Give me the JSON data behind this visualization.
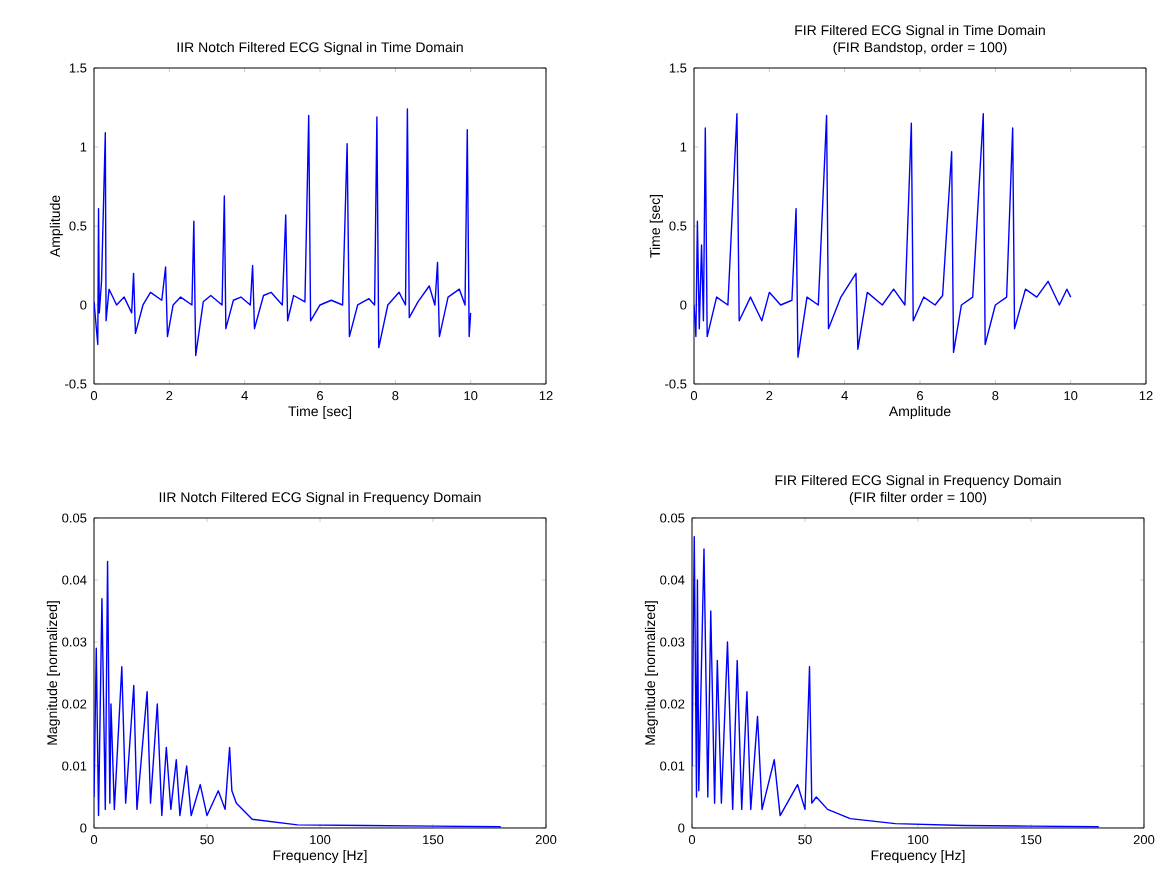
{
  "chart_data": [
    {
      "type": "line",
      "title": "IIR Notch Filtered ECG Signal in Time Domain",
      "xlabel": "Time [sec]",
      "ylabel": "Amplitude",
      "xlim": [
        0,
        12
      ],
      "ylim": [
        -0.5,
        1.5
      ],
      "xticks": [
        0,
        2,
        4,
        6,
        8,
        10,
        12
      ],
      "yticks": [
        -0.5,
        0,
        0.5,
        1,
        1.5
      ],
      "series": [
        {
          "color": "#0000ff",
          "x": [
            0,
            0.1,
            0.12,
            0.14,
            0.2,
            0.3,
            0.32,
            0.4,
            0.6,
            0.8,
            1.0,
            1.05,
            1.1,
            1.3,
            1.5,
            1.8,
            1.9,
            1.95,
            2.1,
            2.3,
            2.6,
            2.65,
            2.7,
            2.9,
            3.1,
            3.4,
            3.46,
            3.5,
            3.7,
            3.9,
            4.15,
            4.21,
            4.26,
            4.5,
            4.7,
            5.0,
            5.09,
            5.14,
            5.3,
            5.6,
            5.7,
            5.75,
            6.0,
            6.3,
            6.6,
            6.72,
            6.78,
            7.0,
            7.3,
            7.45,
            7.51,
            7.56,
            7.8,
            8.1,
            8.27,
            8.32,
            8.37,
            8.6,
            8.9,
            9.05,
            9.12,
            9.17,
            9.4,
            9.7,
            9.85,
            9.91,
            9.96,
            10.0
          ],
          "values": [
            0.02,
            -0.25,
            0.61,
            -0.05,
            0.15,
            1.09,
            -0.1,
            0.1,
            0.0,
            0.05,
            -0.05,
            0.2,
            -0.18,
            0.0,
            0.08,
            0.03,
            0.24,
            -0.2,
            0.0,
            0.05,
            0.0,
            0.53,
            -0.32,
            0.02,
            0.06,
            0.0,
            0.69,
            -0.15,
            0.03,
            0.05,
            0.0,
            0.25,
            -0.15,
            0.06,
            0.08,
            0.0,
            0.57,
            -0.1,
            0.06,
            0.02,
            1.2,
            -0.1,
            0.0,
            0.03,
            0.0,
            1.02,
            -0.2,
            0.0,
            0.04,
            0.0,
            1.19,
            -0.27,
            0.0,
            0.08,
            0.0,
            1.24,
            -0.08,
            0.02,
            0.12,
            0.0,
            0.27,
            -0.2,
            0.05,
            0.1,
            0.0,
            1.11,
            -0.2,
            -0.05
          ]
        }
      ]
    },
    {
      "type": "line",
      "title": "FIR Filtered ECG Signal in Time Domain",
      "subtitle": "(FIR Bandstop, order = 100)",
      "xlabel": "Amplitude",
      "ylabel": "Time [sec]",
      "xlim": [
        0,
        12
      ],
      "ylim": [
        -0.5,
        1.5
      ],
      "xticks": [
        0,
        2,
        4,
        6,
        8,
        10,
        12
      ],
      "yticks": [
        -0.5,
        0,
        0.5,
        1,
        1.5
      ],
      "series": [
        {
          "color": "#0000ff",
          "x": [
            0,
            0.05,
            0.09,
            0.14,
            0.2,
            0.25,
            0.3,
            0.35,
            0.6,
            0.9,
            1.14,
            1.2,
            1.5,
            1.8,
            2.0,
            2.3,
            2.6,
            2.71,
            2.76,
            3.0,
            3.3,
            3.52,
            3.57,
            3.9,
            4.3,
            4.35,
            4.6,
            5.0,
            5.3,
            5.6,
            5.77,
            5.82,
            6.1,
            6.4,
            6.6,
            6.84,
            6.89,
            7.1,
            7.4,
            7.68,
            7.73,
            8.0,
            8.3,
            8.46,
            8.51,
            8.8,
            9.1,
            9.4,
            9.7,
            9.9,
            10.0
          ],
          "values": [
            0.0,
            -0.2,
            0.53,
            -0.15,
            0.38,
            -0.1,
            1.12,
            -0.2,
            0.05,
            0.0,
            1.21,
            -0.1,
            0.05,
            -0.1,
            0.08,
            0.0,
            0.03,
            0.61,
            -0.33,
            0.05,
            0.0,
            1.2,
            -0.15,
            0.05,
            0.2,
            -0.28,
            0.08,
            0.0,
            0.1,
            0.0,
            1.15,
            -0.1,
            0.05,
            0.0,
            0.06,
            0.97,
            -0.3,
            0.0,
            0.05,
            1.21,
            -0.25,
            0.0,
            0.05,
            1.12,
            -0.15,
            0.1,
            0.05,
            0.15,
            0.0,
            0.1,
            0.05
          ]
        }
      ]
    },
    {
      "type": "line",
      "title": "IIR Notch Filtered ECG Signal in Frequency Domain",
      "xlabel": "Frequency [Hz]",
      "ylabel": "Magnitude [normalized]",
      "xlim": [
        0,
        200
      ],
      "ylim": [
        0,
        0.05
      ],
      "xticks": [
        0,
        50,
        100,
        150,
        200
      ],
      "yticks": [
        0,
        0.01,
        0.02,
        0.03,
        0.04,
        0.05
      ],
      "series": [
        {
          "color": "#0000ff",
          "x": [
            0,
            1,
            2,
            3.5,
            5,
            6,
            7,
            7.5,
            9,
            12.3,
            14,
            17.6,
            19,
            23.5,
            25,
            28,
            30,
            32,
            34,
            36.4,
            38,
            41,
            43,
            47,
            50,
            55,
            58,
            60,
            61,
            63,
            70,
            90,
            120,
            150,
            180
          ],
          "values": [
            0.005,
            0.029,
            0.002,
            0.037,
            0.003,
            0.043,
            0.004,
            0.02,
            0.003,
            0.026,
            0.004,
            0.023,
            0.003,
            0.022,
            0.004,
            0.02,
            0.002,
            0.013,
            0.003,
            0.011,
            0.002,
            0.01,
            0.002,
            0.007,
            0.002,
            0.006,
            0.003,
            0.013,
            0.006,
            0.004,
            0.0014,
            0.0005,
            0.0004,
            0.0003,
            0.0002
          ]
        }
      ]
    },
    {
      "type": "line",
      "title": "FIR Filtered ECG Signal in Frequency Domain",
      "subtitle": "(FIR filter order = 100)",
      "xlabel": "Frequency [Hz]",
      "ylabel": "Magnitude [normalized]",
      "xlim": [
        0,
        200
      ],
      "ylim": [
        0,
        0.05
      ],
      "xticks": [
        0,
        50,
        100,
        150,
        200
      ],
      "yticks": [
        0,
        0.01,
        0.02,
        0.03,
        0.04,
        0.05
      ],
      "series": [
        {
          "color": "#0000ff",
          "x": [
            0,
            1,
            2,
            2.4,
            3,
            5.3,
            7,
            8.3,
            10,
            11.2,
            13,
            15.7,
            18,
            20,
            22,
            24.3,
            26,
            29,
            31,
            36.4,
            39,
            46.7,
            50,
            52,
            53,
            55,
            60,
            70,
            90,
            120,
            150,
            180
          ],
          "values": [
            0.01,
            0.047,
            0.005,
            0.04,
            0.006,
            0.045,
            0.005,
            0.035,
            0.004,
            0.027,
            0.004,
            0.03,
            0.003,
            0.027,
            0.003,
            0.022,
            0.003,
            0.018,
            0.003,
            0.011,
            0.002,
            0.007,
            0.003,
            0.026,
            0.004,
            0.005,
            0.003,
            0.0015,
            0.0007,
            0.0004,
            0.0003,
            0.0002
          ]
        }
      ]
    }
  ]
}
